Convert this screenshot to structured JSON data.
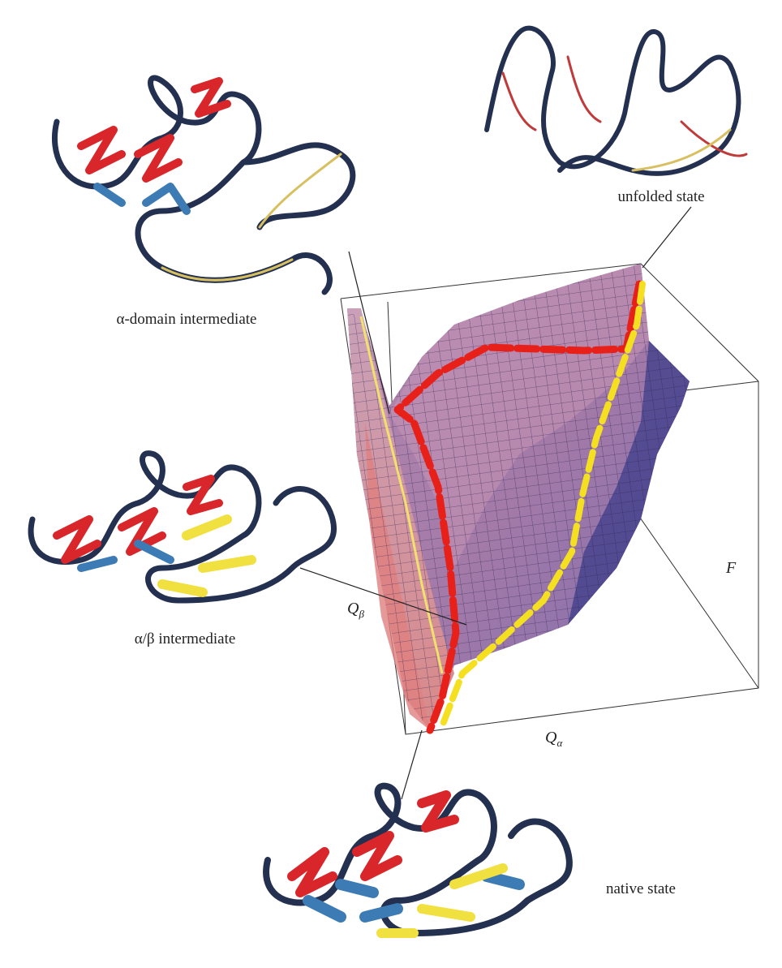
{
  "labels": {
    "unfolded": "unfolded state",
    "alpha_domain": "α-domain intermediate",
    "alpha_beta": "α/β intermediate",
    "native": "native state"
  },
  "axes": {
    "q_beta": {
      "symbol": "Q",
      "subscript": "β"
    },
    "q_alpha": {
      "symbol": "Q",
      "subscript": "α"
    },
    "f": "F"
  }
}
